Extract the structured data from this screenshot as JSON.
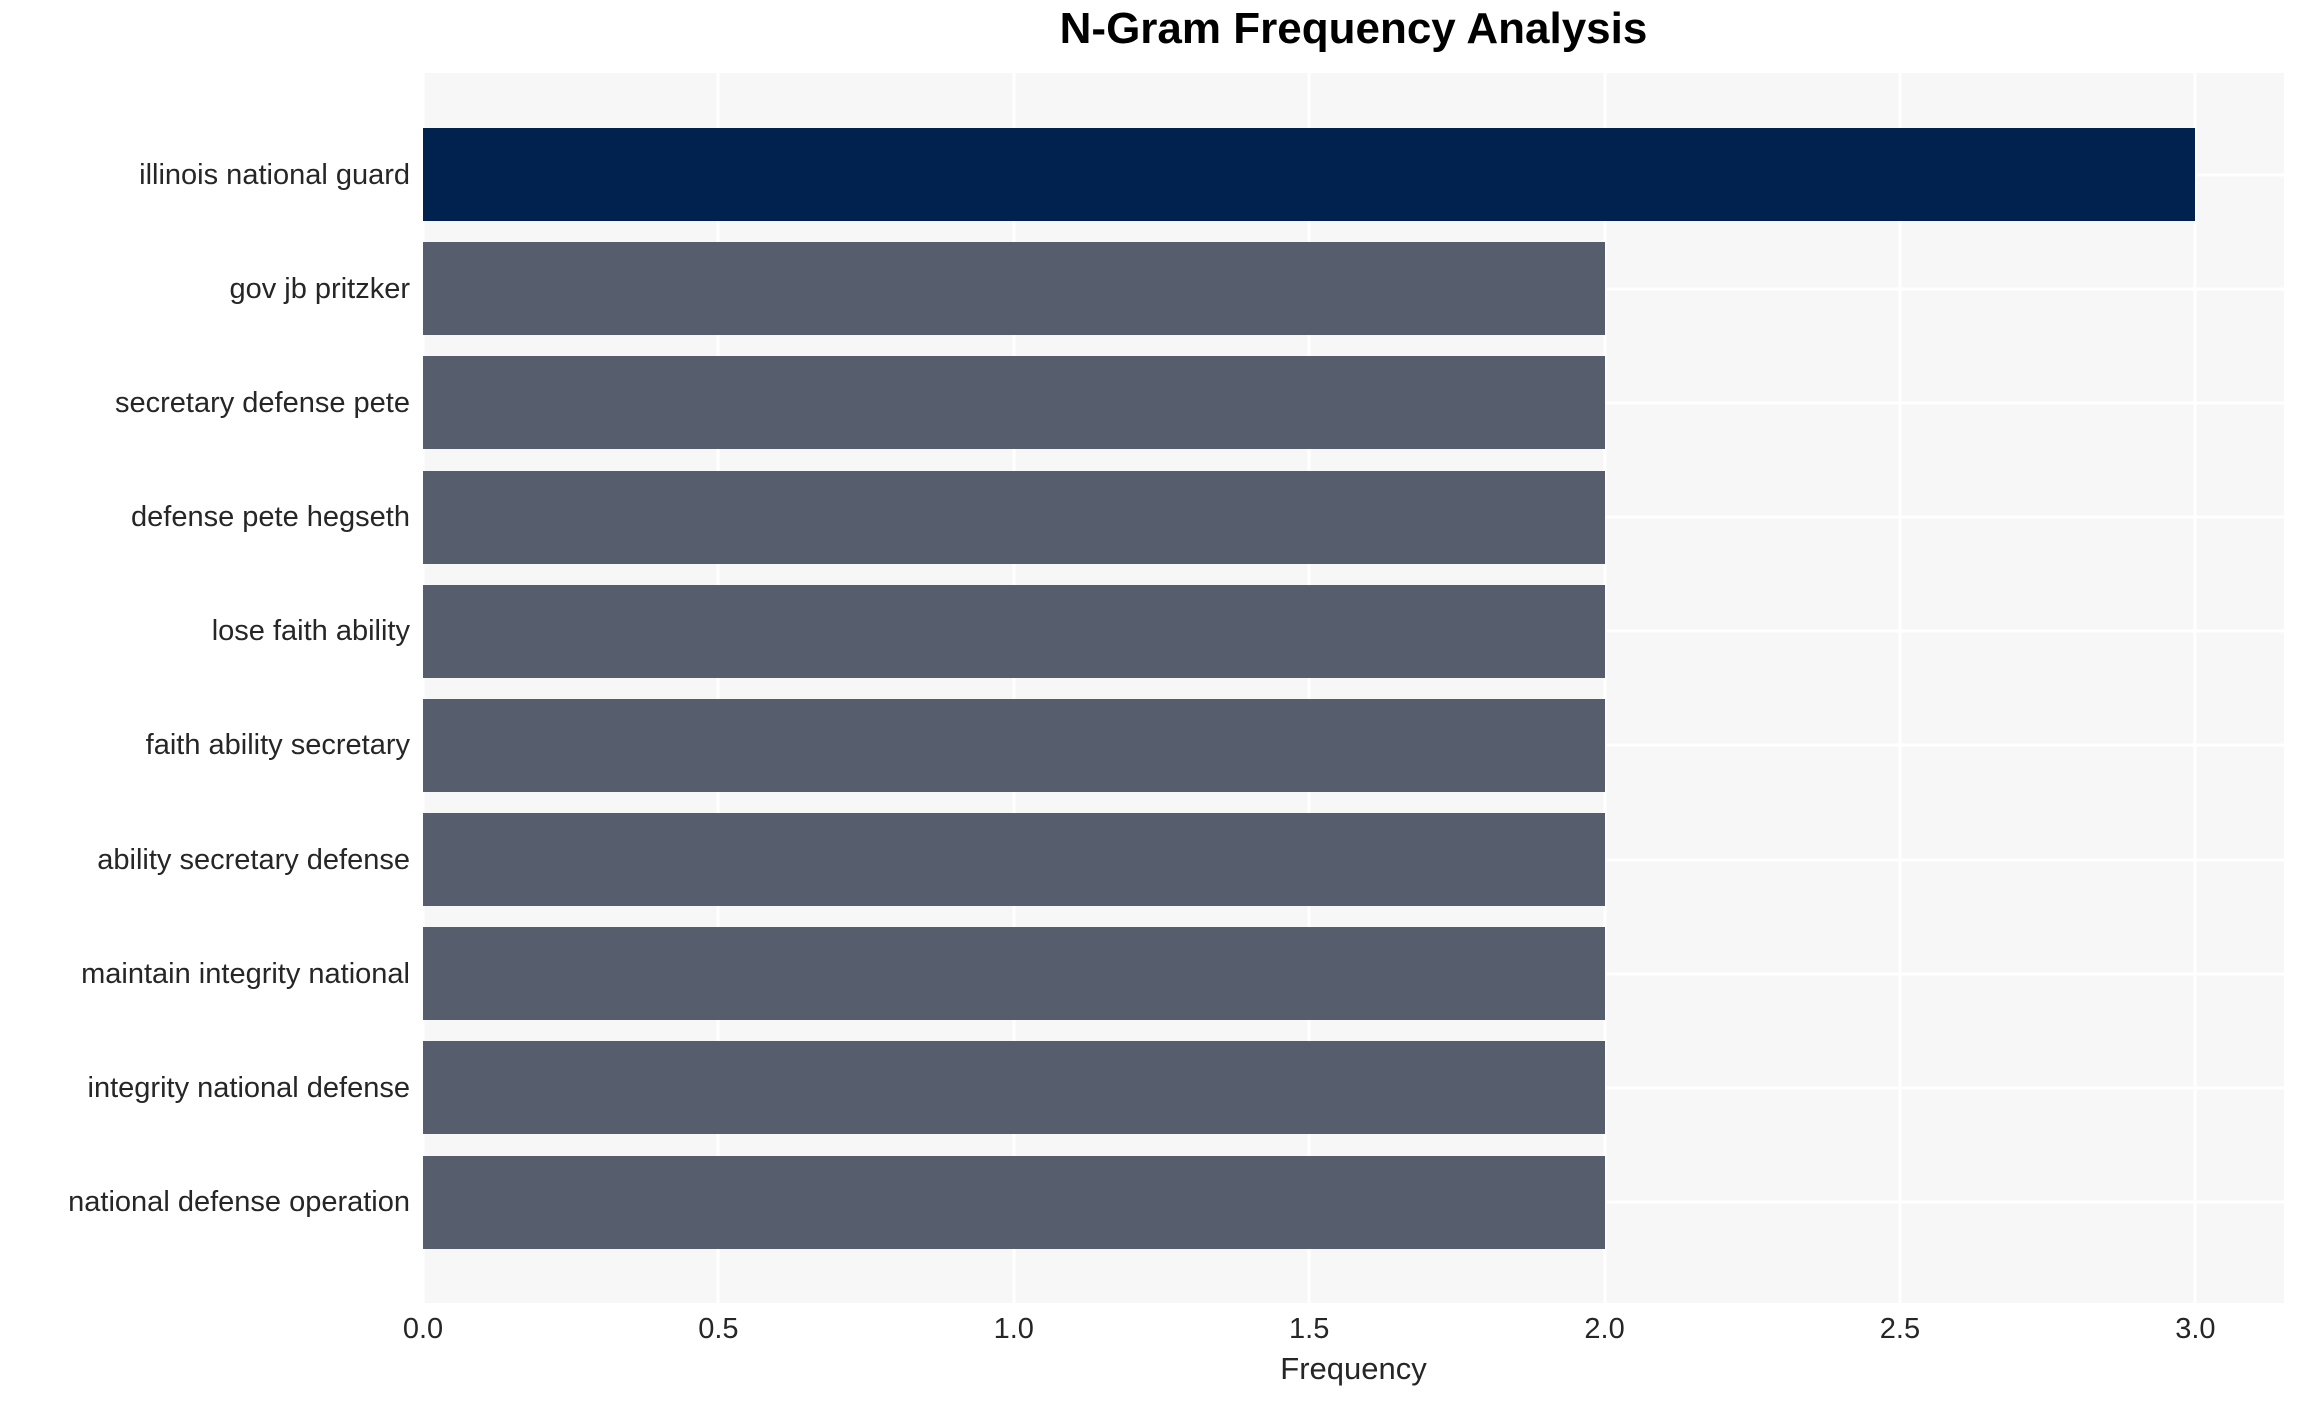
{
  "chart_data": {
    "type": "bar",
    "orientation": "horizontal",
    "title": "N-Gram Frequency Analysis",
    "xlabel": "Frequency",
    "ylabel": "",
    "categories": [
      "illinois national guard",
      "gov jb pritzker",
      "secretary defense pete",
      "defense pete hegseth",
      "lose faith ability",
      "faith ability secretary",
      "ability secretary defense",
      "maintain integrity national",
      "integrity national defense",
      "national defense operation"
    ],
    "values": [
      3,
      2,
      2,
      2,
      2,
      2,
      2,
      2,
      2,
      2
    ],
    "xticks": [
      "0.0",
      "0.5",
      "1.0",
      "1.5",
      "2.0",
      "2.5",
      "3.0"
    ],
    "xtick_values": [
      0,
      0.5,
      1,
      1.5,
      2,
      2.5,
      3
    ],
    "xlim": [
      0,
      3.15
    ],
    "grid": "white vertical gridlines at each x tick and horizontal gridlines at each category center on light gray plot background",
    "legend": "none",
    "highlighted_category": "illinois national guard",
    "colors": {
      "bar_highlight": "#01224E",
      "bar_default": "#565D6C",
      "plot_background": "#F7F7F8",
      "gridline": "#FFFFFF",
      "title_text": "#000000",
      "axis_text": "#262626"
    }
  }
}
